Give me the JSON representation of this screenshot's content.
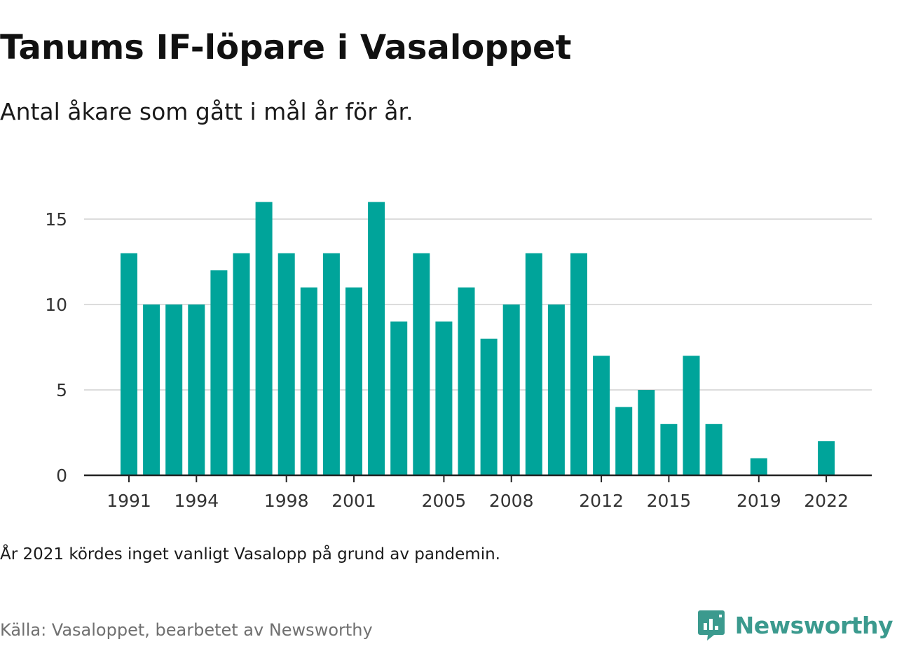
{
  "title": "Tanums IF-löpare i Vasaloppet",
  "subtitle": "Antal åkare som gått i mål år för år.",
  "note": "År 2021 kördes inget vanligt Vasalopp på grund av pandemin.",
  "source": "Källa: Vasaloppet, bearbetet av Newsworthy",
  "brand": "Newsworthy",
  "colors": {
    "bar": "#00a49a",
    "grid": "#dcdcdc",
    "axis": "#222222",
    "brand": "#3b9a8e"
  },
  "chart_data": {
    "type": "bar",
    "title": "Tanums IF-löpare i Vasaloppet",
    "subtitle": "Antal åkare som gått i mål år för år.",
    "xlabel": "",
    "ylabel": "",
    "ylim": [
      0,
      16
    ],
    "yticks": [
      0,
      5,
      10,
      15
    ],
    "grid": true,
    "xtick_labels": [
      "1991",
      "1994",
      "1998",
      "2001",
      "2005",
      "2008",
      "2012",
      "2015",
      "2019",
      "2022"
    ],
    "categories": [
      "1991",
      "1992",
      "1993",
      "1994",
      "1995",
      "1996",
      "1997",
      "1998",
      "1999",
      "2000",
      "2001",
      "2002",
      "2003",
      "2004",
      "2005",
      "2006",
      "2007",
      "2008",
      "2009",
      "2010",
      "2011",
      "2012",
      "2013",
      "2014",
      "2015",
      "2016",
      "2017",
      "2018",
      "2019",
      "2020",
      "2021",
      "2022"
    ],
    "values": [
      13,
      10,
      10,
      10,
      12,
      13,
      16,
      13,
      11,
      13,
      11,
      16,
      9,
      13,
      9,
      11,
      8,
      10,
      13,
      10,
      13,
      7,
      4,
      5,
      3,
      7,
      3,
      0,
      1,
      0,
      0,
      2
    ]
  }
}
